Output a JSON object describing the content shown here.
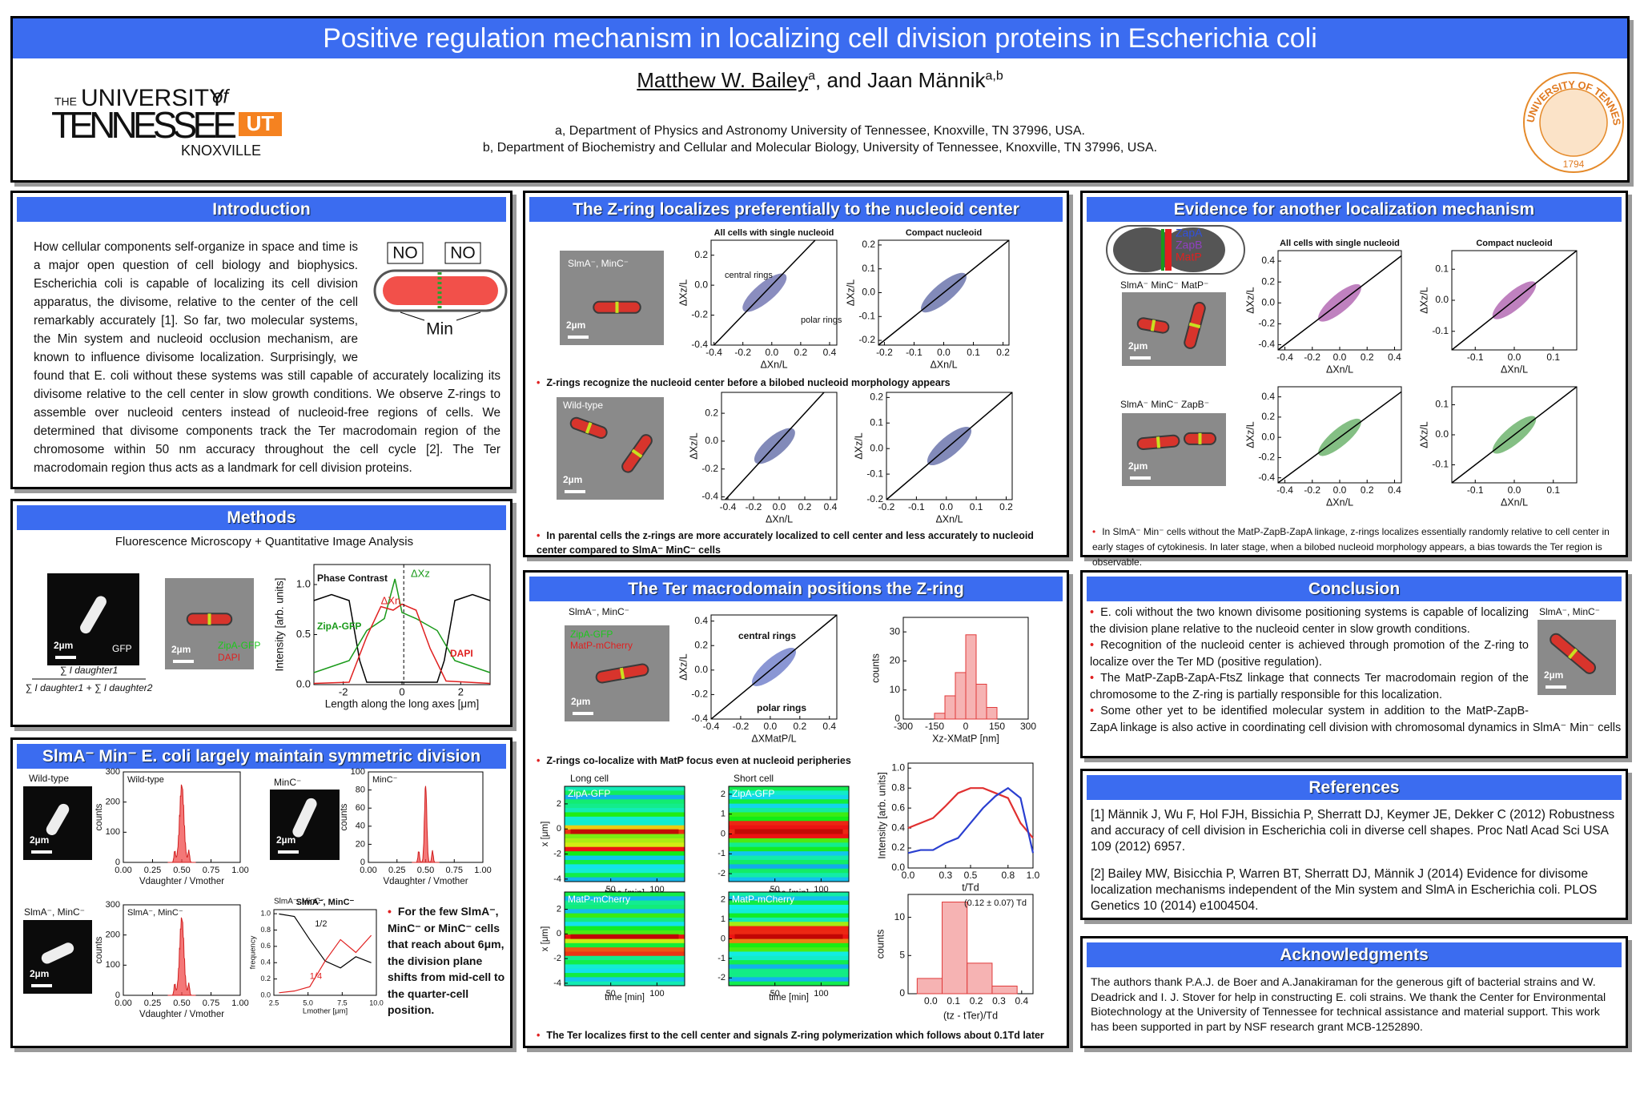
{
  "header": {
    "title": "Positive regulation mechanism in localizing cell division proteins in Escherichia coli",
    "logo": {
      "the": "THE",
      "university": "UNIVERSITY",
      "of": "of",
      "tennessee": "TENNESSEE",
      "knoxville": "KNOXVILLE",
      "mark": "UT"
    },
    "authors": [
      {
        "name": "Matthew W. Bailey",
        "sup": "a"
      },
      {
        "name": ", and Jaan Männik",
        "sup": "a,b"
      }
    ],
    "affiliations": [
      "a, Department of Physics and Astronomy University of Tennessee, Knoxville, TN 37996, USA.",
      "b, Department of Biochemistry and Cellular and Molecular Biology, University of Tennessee, Knoxville, TN 37996, USA."
    ],
    "seal": {
      "ring": "THE UNIVERSITY OF TENNESSEE",
      "year": "1794"
    }
  },
  "scale_bar": "2µm",
  "introduction": {
    "title": "Introduction",
    "text": "How cellular components self-organize in space and time is a major open question of cell biology and biophysics. Escherichia coli is capable of localizing its cell division apparatus, the divisome, relative to the center of the cell remarkably accurately [1]. So far, two molecular systems, the Min system and nucleoid occlusion mechanism, are known to influence divisome localization. Surprisingly, we found that E. coli without these systems was still capable of accurately localizing its divisome relative to the cell center in slow growth conditions. We observe Z-rings to assemble over nucleoid centers instead of nucleoid-free regions of cells. We determined that divisome components track the Ter macrodomain region of the chromosome within 50 nm accuracy throughout the cell cycle [2]. The Ter macrodomain region thus acts as a landmark for cell division proteins.",
    "diagram": {
      "left": "NO",
      "right": "NO",
      "bottom": "Min"
    }
  },
  "methods": {
    "title": "Methods",
    "subtitle": "Fluorescence Microscopy + Quantitative Image Analysis",
    "gfp": "GFP",
    "zipa": "ZipA-GFP",
    "dapi": "DAPI",
    "formula": {
      "numerator": "∑ I daughter1",
      "denominator": "∑ I daughter1 + ∑ I daughter2"
    },
    "plot": {
      "xlabel": "Length along the long axes [μm]",
      "ylabel": "Intensity [arb. units]",
      "xlim": [
        -3,
        3
      ],
      "ylim": [
        0,
        1.2
      ],
      "xticks": [
        -2,
        0,
        2
      ],
      "yticks": [
        {
          "value": 0,
          "label": "0.0"
        },
        0.5,
        {
          "value": 1,
          "label": "1.0"
        }
      ],
      "phase": "Phase Contrast",
      "zipa": "ZipA-GFP",
      "dapi": "DAPI",
      "dxz": "ΔXz",
      "dxn": "ΔXn"
    }
  },
  "slma": {
    "title": "SlmA⁻ Min⁻ E. coli largely maintain symmetric division",
    "images": [
      "Wild-type",
      "MinC⁻",
      "SlmA⁻, MinC⁻"
    ],
    "plots": [
      {
        "title": "Wild-type",
        "xlabel": "Vdaughter / Vmother",
        "ylabel": "counts",
        "xlim": [
          0,
          1
        ],
        "ylim": [
          0,
          300
        ],
        "xticks": [
          {
            "value": 0,
            "label": "0.00"
          },
          0.25,
          {
            "value": 0.5,
            "label": "0.50"
          },
          0.75,
          {
            "value": 1,
            "label": "1.00"
          }
        ],
        "yticks": [
          0,
          100,
          200,
          300
        ]
      },
      {
        "title": "MinC⁻",
        "xlabel": "Vdaughter / Vmother",
        "ylabel": "counts",
        "xlim": [
          0,
          1
        ],
        "ylim": [
          0,
          100
        ],
        "xticks": [
          {
            "value": 0,
            "label": "0.00"
          },
          0.25,
          {
            "value": 0.5,
            "label": "0.50"
          },
          0.75,
          {
            "value": 1,
            "label": "1.00"
          }
        ],
        "yticks": [
          0,
          20,
          40,
          60,
          80,
          100
        ]
      },
      {
        "title": "SlmA⁻, MinC⁻",
        "xlabel": "Vdaughter / Vmother",
        "ylabel": "counts",
        "xlim": [
          0,
          1
        ],
        "ylim": [
          0,
          300
        ],
        "xticks": [
          {
            "value": 0,
            "label": "0.00"
          },
          0.25,
          {
            "value": 0.5,
            "label": "0.50"
          },
          0.75,
          {
            "value": 1,
            "label": "1.00"
          }
        ],
        "yticks": [
          0,
          100,
          200,
          300
        ]
      },
      {
        "title": "SlmA⁻, MinC⁻",
        "xlabel": "Lmother [μm]",
        "ylabel": "frequency",
        "xlim": [
          2.5,
          10
        ],
        "ylim": [
          0,
          1.05
        ],
        "xticks": [
          2.5,
          {
            "value": 5,
            "label": "5.0"
          },
          7.5,
          {
            "value": 10,
            "label": "10.0"
          }
        ],
        "yticks": [
          {
            "value": 0,
            "label": "0.0"
          },
          0.2,
          0.4,
          0.6,
          0.8,
          {
            "value": 1,
            "label": "1.0"
          }
        ],
        "half": "1/2",
        "quarter": "1/4"
      }
    ],
    "note": "For the few SlmA⁻, MinC⁻ or MinC⁻ cells that reach about 6μm, the division plane shifts from mid-cell to the quarter-cell position."
  },
  "zring": {
    "title": "The Z-ring localizes preferentially to the nucleoid center",
    "images": [
      "SlmA⁻, MinC⁻",
      "Wild-type"
    ],
    "plots": [
      {
        "title": "All cells with single nucleoid",
        "xlabel": "ΔXn/L",
        "ylabel": "ΔXz/L",
        "color": "#2a2f8a",
        "xlim": [
          -0.42,
          0.45
        ],
        "ylim": [
          -0.4,
          0.3
        ],
        "xticks": [
          -0.4,
          -0.2,
          {
            "value": 0,
            "label": "0.0"
          },
          0.2,
          0.4
        ],
        "yticks": [
          -0.4,
          -0.2,
          {
            "value": 0,
            "label": "0.0"
          },
          0.2
        ],
        "central": "central rings",
        "polar": "polar rings"
      },
      {
        "title": "Compact nucleoid",
        "xlabel": "ΔXn/L",
        "ylabel": "ΔXz/L",
        "color": "#1c2a80",
        "xlim": [
          -0.22,
          0.22
        ],
        "ylim": [
          -0.22,
          0.22
        ],
        "xticks": [
          -0.2,
          -0.1,
          {
            "value": 0,
            "label": "0.0"
          },
          0.1,
          0.2
        ],
        "yticks": [
          -0.2,
          -0.1,
          {
            "value": 0,
            "label": "0.0"
          },
          0.1,
          0.2
        ]
      },
      {
        "xlabel": "ΔXn/L",
        "ylabel": "ΔXz/L",
        "color": "#1c2a80",
        "xlim": [
          -0.45,
          0.45
        ],
        "ylim": [
          -0.42,
          0.35
        ],
        "xticks": [
          -0.4,
          -0.2,
          {
            "value": 0,
            "label": "0.0"
          },
          0.2,
          0.4
        ],
        "yticks": [
          -0.4,
          -0.2,
          {
            "value": 0,
            "label": "0.0"
          },
          0.2
        ]
      },
      {
        "xlabel": "ΔXn/L",
        "ylabel": "ΔXz/L",
        "color": "#1c2a80",
        "xlim": [
          -0.2,
          0.22
        ],
        "ylim": [
          -0.2,
          0.22
        ],
        "xticks": [
          -0.2,
          -0.1,
          {
            "value": 0,
            "label": "0.0"
          },
          0.1,
          0.2
        ],
        "yticks": [
          -0.2,
          -0.1,
          {
            "value": 0,
            "label": "0.0"
          },
          0.1,
          0.2
        ]
      }
    ],
    "bullets": [
      "Z-rings recognize the nucleoid center before a bilobed nucleoid morphology appears",
      "In parental cells the z-rings are more accurately localized to cell center and less accurately to nucleoid center compared to SlmA⁻ MinC⁻ cells"
    ]
  },
  "evidence": {
    "title": "Evidence for another localization mechanism",
    "diagram": {
      "zapa": "ZapA",
      "zapb": "ZapB",
      "matp": "MatP"
    },
    "images": [
      "SlmA⁻ MinC⁻ MatP⁻",
      "SlmA⁻ MinC⁻ ZapB⁻"
    ],
    "plots": [
      {
        "title": "All cells with single nucleoid",
        "xlabel": "ΔXn/L",
        "ylabel": "ΔXz/L",
        "color": "#8a1a8a",
        "xlim": [
          -0.45,
          0.45
        ],
        "ylim": [
          -0.45,
          0.5
        ],
        "xticks": [
          -0.4,
          -0.2,
          {
            "value": 0,
            "label": "0.0"
          },
          0.2,
          0.4
        ],
        "yticks": [
          -0.4,
          -0.2,
          {
            "value": 0,
            "label": "0.0"
          },
          0.2,
          0.4
        ]
      },
      {
        "title": "Compact nucleoid",
        "xlabel": "ΔXn/L",
        "ylabel": "ΔXz/L",
        "color": "#8a1a8a",
        "xlim": [
          -0.16,
          0.16
        ],
        "ylim": [
          -0.16,
          0.16
        ],
        "xticks": [
          -0.1,
          {
            "value": 0,
            "label": "0.0"
          },
          0.1
        ],
        "yticks": [
          -0.1,
          {
            "value": 0,
            "label": "0.0"
          },
          0.1
        ]
      },
      {
        "xlabel": "ΔXn/L",
        "ylabel": "ΔXz/L",
        "color": "#1f8a1f",
        "xlim": [
          -0.45,
          0.45
        ],
        "ylim": [
          -0.45,
          0.5
        ],
        "xticks": [
          -0.4,
          -0.2,
          {
            "value": 0,
            "label": "0.0"
          },
          0.2,
          0.4
        ],
        "yticks": [
          -0.4,
          -0.2,
          {
            "value": 0,
            "label": "0.0"
          },
          0.2,
          0.4
        ]
      },
      {
        "xlabel": "ΔXn/L",
        "ylabel": "ΔXz/L",
        "color": "#1f8a1f",
        "xlim": [
          -0.16,
          0.16
        ],
        "ylim": [
          -0.16,
          0.16
        ],
        "xticks": [
          -0.1,
          {
            "value": 0,
            "label": "0.0"
          },
          0.1
        ],
        "yticks": [
          -0.1,
          {
            "value": 0,
            "label": "0.0"
          },
          0.1
        ]
      }
    ],
    "note": "In SlmA⁻ Min⁻ cells without the MatP-ZapB-ZapA linkage, z-rings localizes essentially randomly relative to cell center in early stages of cytokinesis. In later stage, when a bilobed nucleoid morphology appears, a bias towards the Ter region is observable."
  },
  "ter": {
    "title": "The Ter macrodomain positions the Z-ring",
    "image": {
      "label": "SlmA⁻, MinC⁻",
      "zipa": "ZipA-GFP",
      "matp": "MatP-mCherry"
    },
    "scatter": {
      "xlabel": "ΔXMatP/L",
      "ylabel": "ΔXz/L",
      "color": "#2a3fb0",
      "xlim": [
        -0.4,
        0.45
      ],
      "ylim": [
        -0.4,
        0.45
      ],
      "xticks": [
        -0.4,
        -0.2,
        {
          "value": 0,
          "label": "0.0"
        },
        0.2,
        0.4
      ],
      "yticks": [
        -0.4,
        -0.2,
        {
          "value": 0,
          "label": "0.0"
        },
        0.2,
        0.4
      ],
      "central": "central rings",
      "polar": "polar rings"
    },
    "histogram": {
      "xlabel": "Xz-XMatP [nm]",
      "ylabel": "counts",
      "xlim": [
        -300,
        300
      ],
      "ylim": [
        0,
        35
      ],
      "xticks": [
        -300,
        -150,
        0,
        150,
        300
      ],
      "yticks": [
        0,
        10,
        20,
        30
      ],
      "bins": [
        -150,
        -100,
        -50,
        0,
        50,
        100,
        150
      ],
      "counts": [
        2,
        8,
        16,
        29,
        12,
        4
      ]
    },
    "bullets": [
      "Z-rings co-localize with MatP focus even at nucleoid peripheries",
      "The Ter localizes first to the cell center and signals Z-ring polymerization which  follows about 0.1Td later"
    ],
    "kymographs": {
      "long": "Long cell",
      "short": "Short cell",
      "zipa": "ZipA-GFP",
      "matp": "MatP-mCherry",
      "plots": [
        {
          "xlabel": "time [min]",
          "ylabel": "x [μm]",
          "xlim": [
            0,
            130
          ],
          "ylim": [
            -4.2,
            3.4
          ],
          "xticks": [
            50,
            100
          ],
          "yticks": [
            -4,
            -2,
            0,
            2
          ]
        },
        {
          "xlabel": "time [min]",
          "xlim": [
            0,
            130
          ],
          "ylim": [
            -2.4,
            2.4
          ],
          "xticks": [
            50,
            100
          ],
          "yticks": [
            -2,
            -1,
            0,
            1,
            2
          ]
        },
        {
          "xlabel": "time [min]",
          "ylabel": "x [μm]",
          "xlim": [
            0,
            130
          ],
          "ylim": [
            -4.2,
            3.4
          ],
          "xticks": [
            50,
            100
          ],
          "yticks": [
            -4,
            -2,
            0,
            2
          ]
        },
        {
          "xlabel": "time [min]",
          "xlim": [
            0,
            130
          ],
          "ylim": [
            -2.4,
            2.4
          ],
          "xticks": [
            50,
            100
          ],
          "yticks": [
            -2,
            -1,
            0,
            1,
            2
          ]
        }
      ]
    },
    "intensity": {
      "xlabel": "t/Td",
      "ylabel": "Intensity [arb. units]",
      "xlim": [
        0,
        1
      ],
      "ylim": [
        0,
        1.05
      ],
      "xticks": [
        {
          "value": 0,
          "label": "0.0"
        },
        0.3,
        0.5,
        0.8,
        {
          "value": 1,
          "label": "1.0"
        }
      ],
      "yticks": [
        {
          "value": 0,
          "label": "0.0"
        },
        0.2,
        0.4,
        0.6,
        0.8,
        {
          "value": 1,
          "label": "1.0"
        }
      ],
      "x": [
        0,
        0.1,
        0.2,
        0.3,
        0.4,
        0.5,
        0.6,
        0.7,
        0.8,
        0.9,
        1.0
      ],
      "series": [
        {
          "color": "#e03030",
          "values": [
            0.4,
            0.45,
            0.5,
            0.62,
            0.75,
            0.8,
            0.8,
            0.75,
            0.7,
            0.45,
            0.3
          ]
        },
        {
          "color": "#2a3fd0",
          "values": [
            0.15,
            0.18,
            0.18,
            0.25,
            0.3,
            0.45,
            0.6,
            0.72,
            0.8,
            0.7,
            0.15
          ]
        }
      ]
    },
    "histogram2": {
      "annotation": "(0.12 ± 0.07) Td",
      "xlabel": "(tz - tTer)/Td",
      "ylabel": "counts",
      "xlim": [
        -0.1,
        0.45
      ],
      "ylim": [
        0,
        13
      ],
      "xticks": [
        {
          "value": 0,
          "label": "0.0"
        },
        0.1,
        0.2,
        0.3,
        0.4
      ],
      "yticks": [
        0,
        5,
        10
      ],
      "bins": [
        -0.06,
        0.05,
        0.16,
        0.27,
        0.38
      ],
      "counts": [
        2,
        12,
        4,
        1
      ]
    }
  },
  "conclusion": {
    "title": "Conclusion",
    "image": "SlmA⁻, MinC⁻",
    "bullets": [
      "E. coli without the two known divisome positioning systems is capable of localizing the division plane relative to the nucleoid center in slow growth conditions.",
      "Recognition of the nucleoid center is achieved through promotion of the Z-ring to localize over the Ter MD (positive regulation).",
      "The MatP-ZapB-ZapA-FtsZ linkage that connects Ter macrodomain region of the chromosome to the Z-ring is partially responsible for this localization.",
      "Some other yet to be identified molecular system in addition to the MatP-ZapB-ZapA linkage is also active in coordinating cell division with chromosomal dynamics in SlmA⁻ Min⁻ cells"
    ]
  },
  "references": {
    "title": "References",
    "items": [
      "[1] Männik J, Wu F, Hol FJH, Bissichia P, Sherratt DJ, Keymer JE, Dekker C (2012) Robustness and accuracy of cell division in Escherichia coli in diverse cell shapes. Proc Natl Acad Sci USA 109 (2012) 6957.",
      "[2] Bailey MW, Bisicchia P, Warren BT, Sherratt DJ, Männik J (2014) Evidence for divisome localization mechanisms independent of the Min system and SlmA in Escherichia coli. PLOS Genetics 10 (2014) e1004504."
    ]
  },
  "acknowledgments": {
    "title": "Acknowledgments",
    "text": "The authors thank P.A.J. de Boer and A.Janakiraman for the generous gift of bacterial strains and W. Deadrick and I. J. Stover for help in constructing E. coli strains. We thank the Center for Environmental Biotechnology at the University of Tennessee for technical assistance and material support. This work has been supported in part by NSF research grant MCB-1252890."
  }
}
